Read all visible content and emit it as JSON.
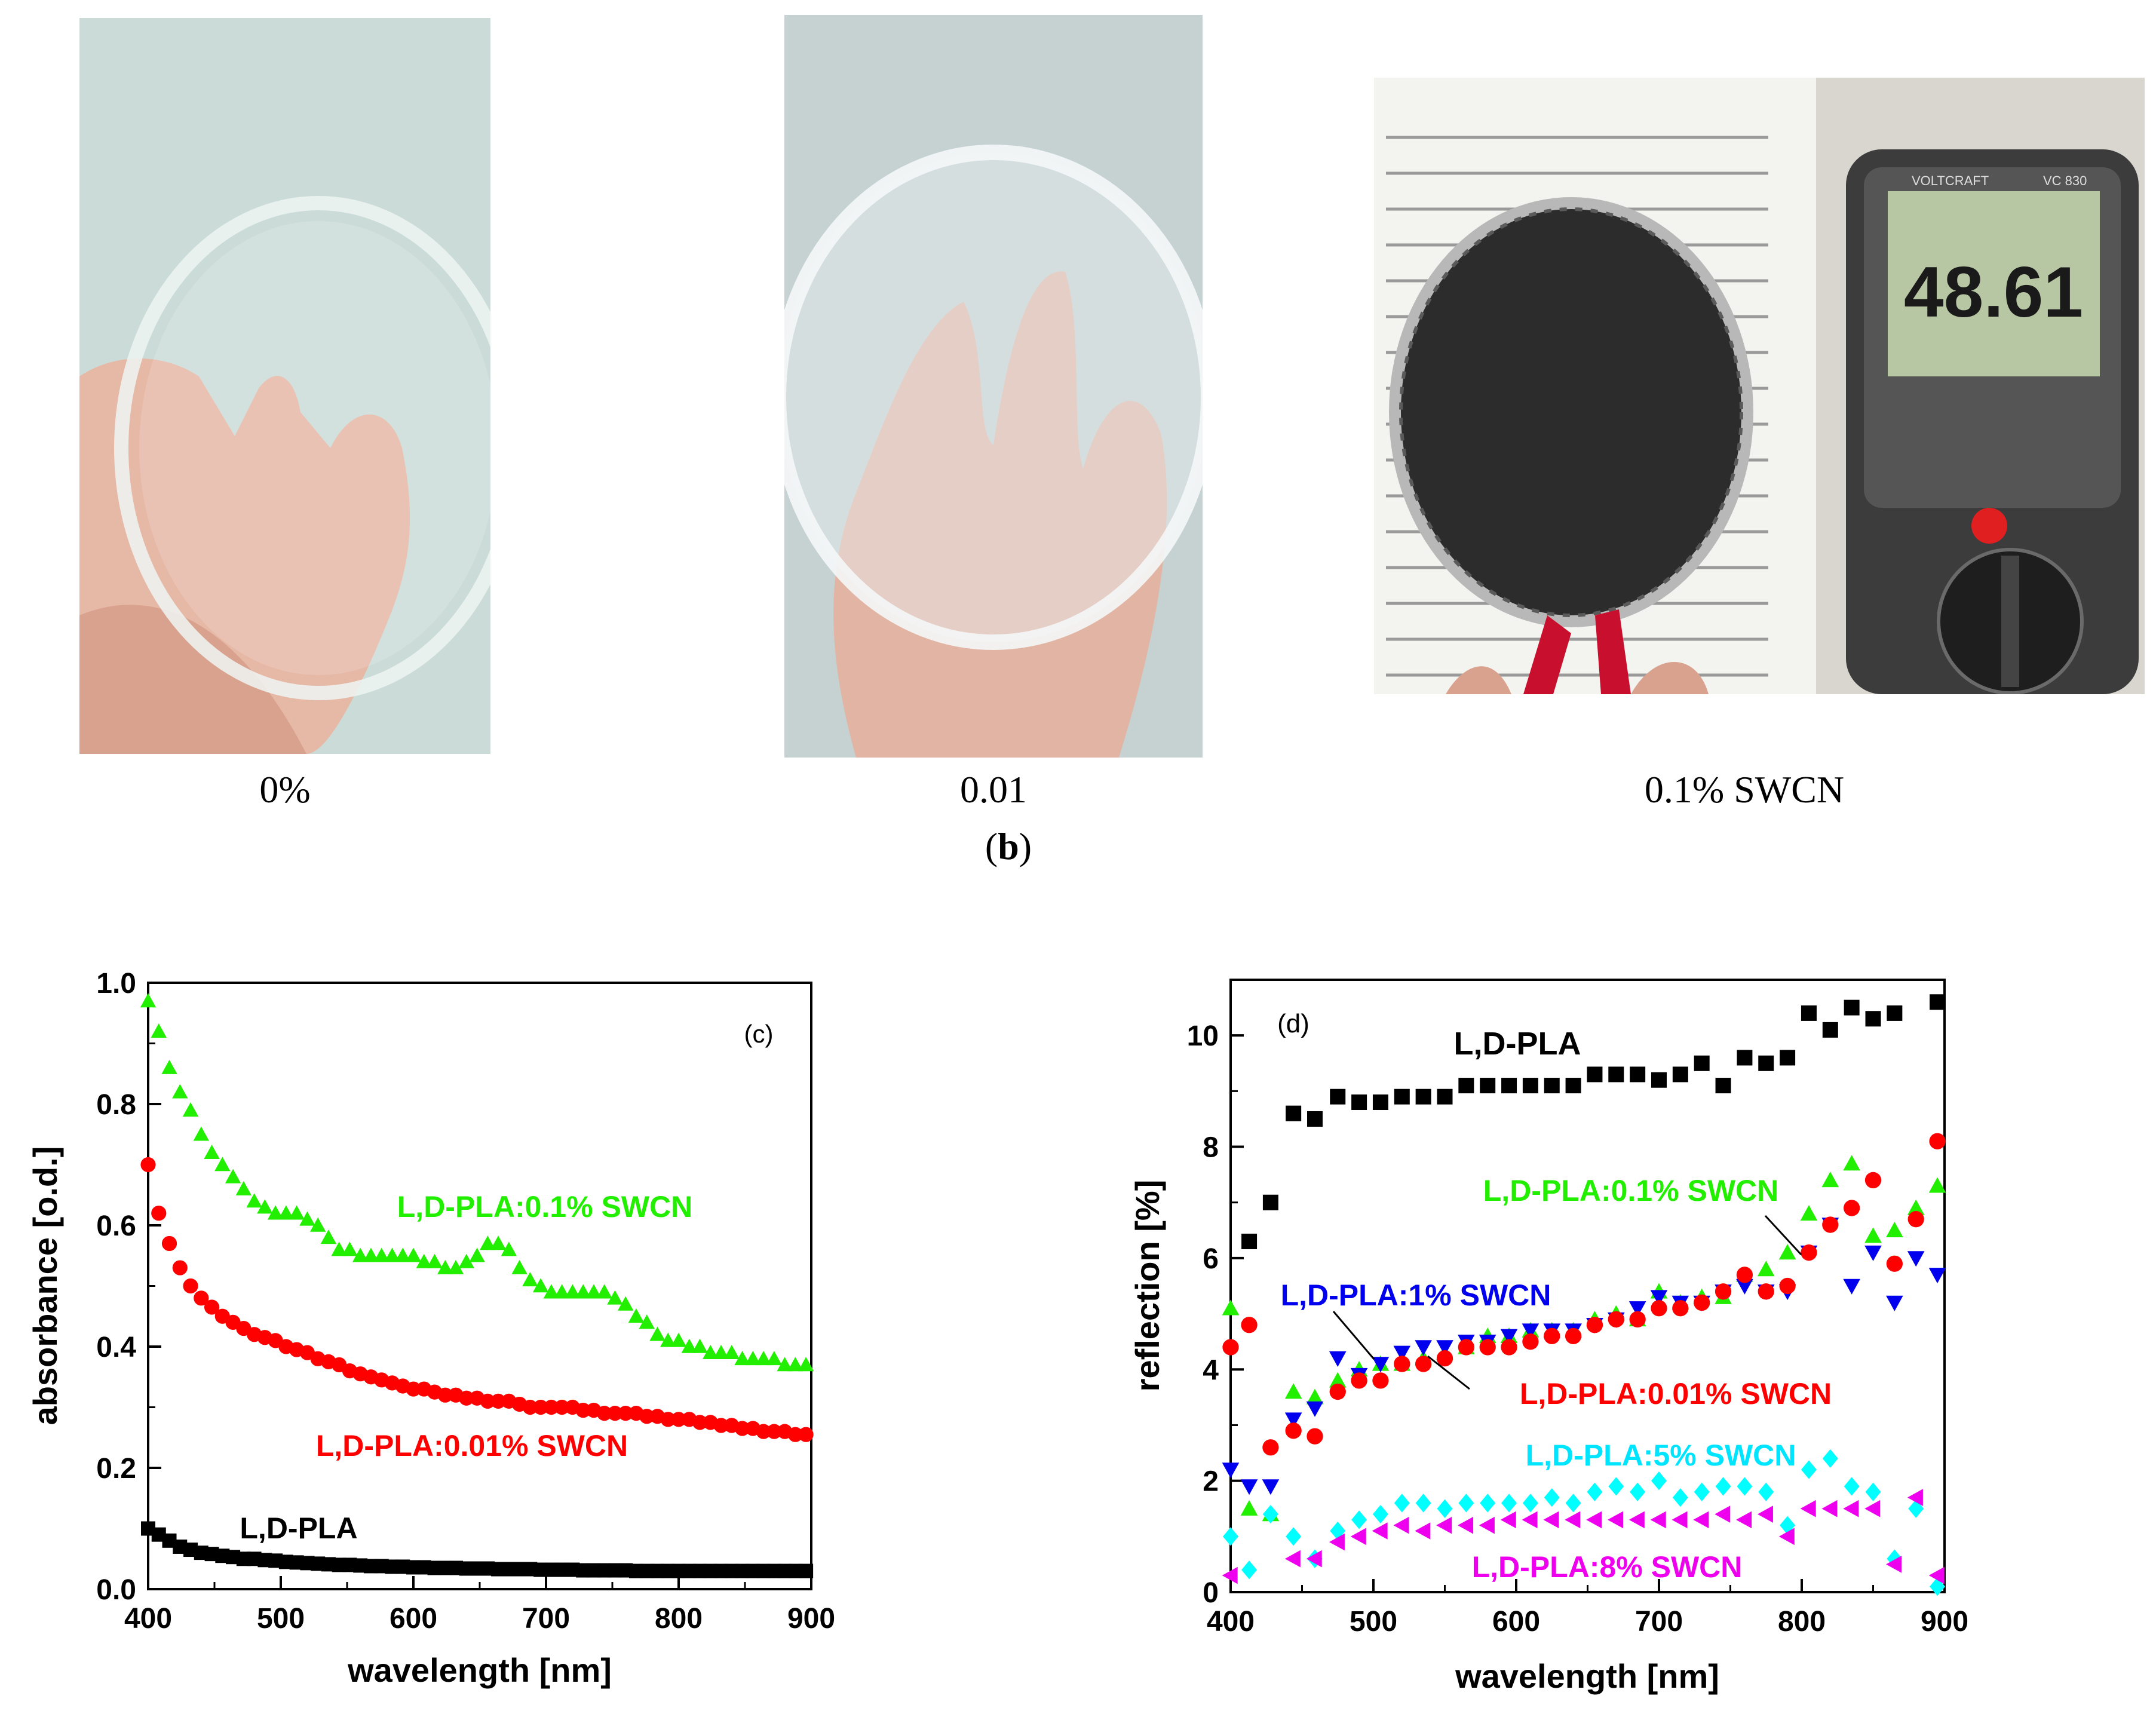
{
  "photos": {
    "captions": [
      "0%",
      "0.01",
      "0.1% SWCN"
    ],
    "panel_label_open": "(",
    "panel_label_letter": "b",
    "panel_label_close": ")",
    "meter_display": "48.61",
    "meter_brand": "VOLTCRAFT",
    "meter_model": "VC 830"
  },
  "colors": {
    "black": "#000000",
    "red": "#ff0000",
    "green": "#22ee00",
    "blue": "#0000ee",
    "cyan": "#00ffff",
    "magenta": "#ee00ee"
  },
  "chart_data": [
    {
      "type": "scatter",
      "panel": "(c)",
      "xlabel": "wavelength [nm]",
      "ylabel": "absorbance [o.d.]",
      "xlim": [
        400,
        900
      ],
      "ylim": [
        0,
        1.0
      ],
      "xticks": [
        400,
        500,
        600,
        700,
        800,
        900
      ],
      "yticks": [
        0.0,
        0.2,
        0.4,
        0.6,
        0.8,
        1.0
      ],
      "ytick_labels": [
        "0.0",
        "0.2",
        "0.4",
        "0.6",
        "0.8",
        "1.0"
      ],
      "series": [
        {
          "name": "L,D-PLA:0.1% SWCN",
          "color": "#22ee00",
          "marker": "triangle-up",
          "x": [
            400,
            408,
            416,
            424,
            432,
            440,
            448,
            456,
            464,
            472,
            480,
            488,
            496,
            504,
            512,
            520,
            528,
            536,
            544,
            552,
            560,
            568,
            576,
            584,
            592,
            600,
            608,
            616,
            624,
            632,
            640,
            648,
            656,
            664,
            672,
            680,
            688,
            696,
            704,
            712,
            720,
            728,
            736,
            744,
            752,
            760,
            768,
            776,
            784,
            792,
            800,
            808,
            816,
            824,
            832,
            840,
            848,
            856,
            864,
            872,
            880,
            888,
            896
          ],
          "y": [
            0.97,
            0.92,
            0.86,
            0.82,
            0.79,
            0.75,
            0.72,
            0.7,
            0.68,
            0.66,
            0.64,
            0.63,
            0.62,
            0.62,
            0.62,
            0.61,
            0.6,
            0.58,
            0.56,
            0.56,
            0.55,
            0.55,
            0.55,
            0.55,
            0.55,
            0.55,
            0.54,
            0.54,
            0.53,
            0.53,
            0.54,
            0.55,
            0.57,
            0.57,
            0.56,
            0.53,
            0.51,
            0.5,
            0.49,
            0.49,
            0.49,
            0.49,
            0.49,
            0.49,
            0.48,
            0.47,
            0.45,
            0.44,
            0.42,
            0.41,
            0.41,
            0.4,
            0.4,
            0.39,
            0.39,
            0.39,
            0.38,
            0.38,
            0.38,
            0.38,
            0.37,
            0.37,
            0.37
          ]
        },
        {
          "name": "L,D-PLA:0.01% SWCN",
          "color": "#ff0000",
          "marker": "circle",
          "x": [
            400,
            408,
            416,
            424,
            432,
            440,
            448,
            456,
            464,
            472,
            480,
            488,
            496,
            504,
            512,
            520,
            528,
            536,
            544,
            552,
            560,
            568,
            576,
            584,
            592,
            600,
            608,
            616,
            624,
            632,
            640,
            648,
            656,
            664,
            672,
            680,
            688,
            696,
            704,
            712,
            720,
            728,
            736,
            744,
            752,
            760,
            768,
            776,
            784,
            792,
            800,
            808,
            816,
            824,
            832,
            840,
            848,
            856,
            864,
            872,
            880,
            888,
            896
          ],
          "y": [
            0.7,
            0.62,
            0.57,
            0.53,
            0.5,
            0.48,
            0.465,
            0.45,
            0.44,
            0.43,
            0.42,
            0.415,
            0.41,
            0.4,
            0.395,
            0.39,
            0.38,
            0.375,
            0.37,
            0.36,
            0.355,
            0.35,
            0.345,
            0.34,
            0.335,
            0.33,
            0.33,
            0.325,
            0.32,
            0.32,
            0.315,
            0.315,
            0.31,
            0.31,
            0.31,
            0.305,
            0.3,
            0.3,
            0.3,
            0.3,
            0.3,
            0.295,
            0.295,
            0.29,
            0.29,
            0.29,
            0.29,
            0.285,
            0.285,
            0.28,
            0.28,
            0.28,
            0.275,
            0.275,
            0.27,
            0.27,
            0.265,
            0.265,
            0.26,
            0.26,
            0.26,
            0.255,
            0.255
          ]
        },
        {
          "name": "L,D-PLA",
          "color": "#000000",
          "marker": "square",
          "x": [
            400,
            408,
            416,
            424,
            432,
            440,
            448,
            456,
            464,
            472,
            480,
            488,
            496,
            504,
            512,
            520,
            528,
            536,
            544,
            552,
            560,
            568,
            576,
            584,
            592,
            600,
            608,
            616,
            624,
            632,
            640,
            648,
            656,
            664,
            672,
            680,
            688,
            696,
            704,
            712,
            720,
            728,
            736,
            744,
            752,
            760,
            768,
            776,
            784,
            792,
            800,
            808,
            816,
            824,
            832,
            840,
            848,
            856,
            864,
            872,
            880,
            888,
            896
          ],
          "y": [
            0.1,
            0.09,
            0.08,
            0.07,
            0.065,
            0.06,
            0.058,
            0.055,
            0.053,
            0.05,
            0.05,
            0.048,
            0.047,
            0.045,
            0.044,
            0.043,
            0.042,
            0.041,
            0.04,
            0.04,
            0.039,
            0.038,
            0.038,
            0.037,
            0.037,
            0.036,
            0.036,
            0.035,
            0.035,
            0.035,
            0.034,
            0.034,
            0.034,
            0.033,
            0.033,
            0.033,
            0.033,
            0.032,
            0.032,
            0.032,
            0.032,
            0.031,
            0.031,
            0.031,
            0.031,
            0.031,
            0.03,
            0.03,
            0.03,
            0.03,
            0.03,
            0.03,
            0.03,
            0.03,
            0.03,
            0.03,
            0.03,
            0.03,
            0.03,
            0.03,
            0.03,
            0.03,
            0.03
          ]
        }
      ]
    },
    {
      "type": "scatter",
      "panel": "(d)",
      "xlabel": "wavelength [nm]",
      "ylabel": "reflection [%]",
      "xlim": [
        400,
        900
      ],
      "ylim": [
        0,
        11
      ],
      "xticks": [
        400,
        500,
        600,
        700,
        800,
        900
      ],
      "yticks": [
        0,
        2,
        4,
        6,
        8,
        10
      ],
      "ytick_labels": [
        "0",
        "2",
        "4",
        "6",
        "8",
        "10"
      ],
      "series": [
        {
          "name": "L,D-PLA",
          "color": "#000000",
          "marker": "square",
          "x": [
            413,
            428,
            444,
            459,
            475,
            490,
            505,
            520,
            535,
            550,
            565,
            580,
            595,
            610,
            625,
            640,
            655,
            670,
            685,
            700,
            715,
            730,
            745,
            760,
            775,
            790,
            805,
            820,
            835,
            850,
            865,
            895
          ],
          "y": [
            6.3,
            7.0,
            8.6,
            8.5,
            8.9,
            8.8,
            8.8,
            8.9,
            8.9,
            8.9,
            9.1,
            9.1,
            9.1,
            9.1,
            9.1,
            9.1,
            9.3,
            9.3,
            9.3,
            9.2,
            9.3,
            9.5,
            9.1,
            9.6,
            9.5,
            9.6,
            10.4,
            10.1,
            10.5,
            10.3,
            10.4,
            10.6
          ]
        },
        {
          "name": "L,D-PLA:0.1% SWCN",
          "color": "#22ee00",
          "marker": "triangle-up",
          "x": [
            400,
            413,
            428,
            444,
            459,
            475,
            490,
            505,
            520,
            535,
            550,
            565,
            580,
            595,
            610,
            625,
            640,
            655,
            670,
            685,
            700,
            715,
            730,
            745,
            760,
            775,
            790,
            805,
            820,
            835,
            850,
            865,
            880,
            895
          ],
          "y": [
            5.1,
            1.5,
            1.4,
            3.6,
            3.5,
            3.8,
            4.0,
            4.1,
            4.1,
            4.2,
            4.3,
            4.4,
            4.6,
            4.6,
            4.7,
            4.7,
            4.7,
            4.9,
            5.0,
            4.9,
            5.4,
            5.2,
            5.3,
            5.3,
            5.7,
            5.8,
            6.1,
            6.8,
            7.4,
            7.7,
            6.4,
            6.5,
            6.9,
            7.3
          ]
        },
        {
          "name": "L,D-PLA:1% SWCN",
          "color": "#0000ee",
          "marker": "triangle-down",
          "x": [
            400,
            413,
            428,
            444,
            459,
            475,
            490,
            505,
            520,
            535,
            550,
            565,
            580,
            595,
            610,
            625,
            640,
            655,
            670,
            685,
            700,
            715,
            730,
            745,
            760,
            775,
            790,
            805,
            820,
            835,
            850,
            865,
            880,
            895
          ],
          "y": [
            2.2,
            1.9,
            1.9,
            3.1,
            3.3,
            4.2,
            3.9,
            4.1,
            4.3,
            4.4,
            4.4,
            4.5,
            4.5,
            4.6,
            4.7,
            4.7,
            4.7,
            4.8,
            4.9,
            5.1,
            5.3,
            5.2,
            5.2,
            5.4,
            5.5,
            5.4,
            5.4,
            6.1,
            6.6,
            5.5,
            6.1,
            5.2,
            6.0,
            5.7
          ]
        },
        {
          "name": "L,D-PLA:0.01% SWCN",
          "color": "#ff0000",
          "marker": "circle",
          "x": [
            400,
            413,
            428,
            444,
            459,
            475,
            490,
            505,
            520,
            535,
            550,
            565,
            580,
            595,
            610,
            625,
            640,
            655,
            670,
            685,
            700,
            715,
            730,
            745,
            760,
            775,
            790,
            805,
            820,
            835,
            850,
            865,
            880,
            895
          ],
          "y": [
            4.4,
            4.8,
            2.6,
            2.9,
            2.8,
            3.6,
            3.8,
            3.8,
            4.1,
            4.1,
            4.2,
            4.4,
            4.4,
            4.4,
            4.5,
            4.6,
            4.6,
            4.8,
            4.9,
            4.9,
            5.1,
            5.1,
            5.2,
            5.4,
            5.7,
            5.4,
            5.5,
            6.1,
            6.6,
            6.9,
            7.4,
            5.9,
            6.7,
            8.1
          ]
        },
        {
          "name": "L,D-PLA:5% SWCN",
          "color": "#00ffff",
          "marker": "diamond",
          "x": [
            400,
            413,
            428,
            444,
            459,
            475,
            490,
            505,
            520,
            535,
            550,
            565,
            580,
            595,
            610,
            625,
            640,
            655,
            670,
            685,
            700,
            715,
            730,
            745,
            760,
            775,
            790,
            805,
            820,
            835,
            850,
            865,
            880,
            895
          ],
          "y": [
            1.0,
            0.4,
            1.4,
            1.0,
            0.6,
            1.1,
            1.3,
            1.4,
            1.6,
            1.6,
            1.5,
            1.6,
            1.6,
            1.6,
            1.6,
            1.7,
            1.6,
            1.8,
            1.9,
            1.8,
            2.0,
            1.7,
            1.8,
            1.9,
            1.9,
            1.8,
            1.2,
            2.2,
            2.4,
            1.9,
            1.8,
            0.6,
            1.5,
            0.1
          ]
        },
        {
          "name": "L,D-PLA:8% SWCN",
          "color": "#ee00ee",
          "marker": "triangle-left",
          "x": [
            400,
            444,
            459,
            475,
            490,
            505,
            520,
            535,
            550,
            565,
            580,
            595,
            610,
            625,
            640,
            655,
            670,
            685,
            700,
            715,
            730,
            745,
            760,
            775,
            790,
            805,
            820,
            835,
            850,
            865,
            880,
            895
          ],
          "y": [
            0.3,
            0.6,
            0.6,
            0.9,
            1.0,
            1.1,
            1.2,
            1.1,
            1.2,
            1.2,
            1.2,
            1.3,
            1.3,
            1.3,
            1.3,
            1.3,
            1.3,
            1.3,
            1.3,
            1.3,
            1.3,
            1.4,
            1.3,
            1.4,
            1.0,
            1.5,
            1.5,
            1.5,
            1.5,
            0.5,
            1.7,
            0.3
          ]
        }
      ]
    }
  ],
  "annotations": {
    "c": {
      "panel_label": "(c)",
      "labels": [
        {
          "text": "L,D-PLA:0.1% SWCN",
          "color": "#22ee00"
        },
        {
          "text": "L,D-PLA:0.01% SWCN",
          "color": "#ff0000"
        },
        {
          "text": "L,D-PLA",
          "color": "#000000"
        }
      ]
    },
    "d": {
      "panel_label": "(d)",
      "labels": [
        {
          "text": "L,D-PLA",
          "color": "#000000"
        },
        {
          "text": "L,D-PLA:0.1% SWCN",
          "color": "#22ee00"
        },
        {
          "text": "L,D-PLA:1% SWCN",
          "color": "#0000ee"
        },
        {
          "text": "L,D-PLA:0.01% SWCN",
          "color": "#ff0000"
        },
        {
          "text": "L,D-PLA:5% SWCN",
          "color": "#00ffff"
        },
        {
          "text": "L,D-PLA:8% SWCN",
          "color": "#ee00ee"
        }
      ]
    }
  }
}
